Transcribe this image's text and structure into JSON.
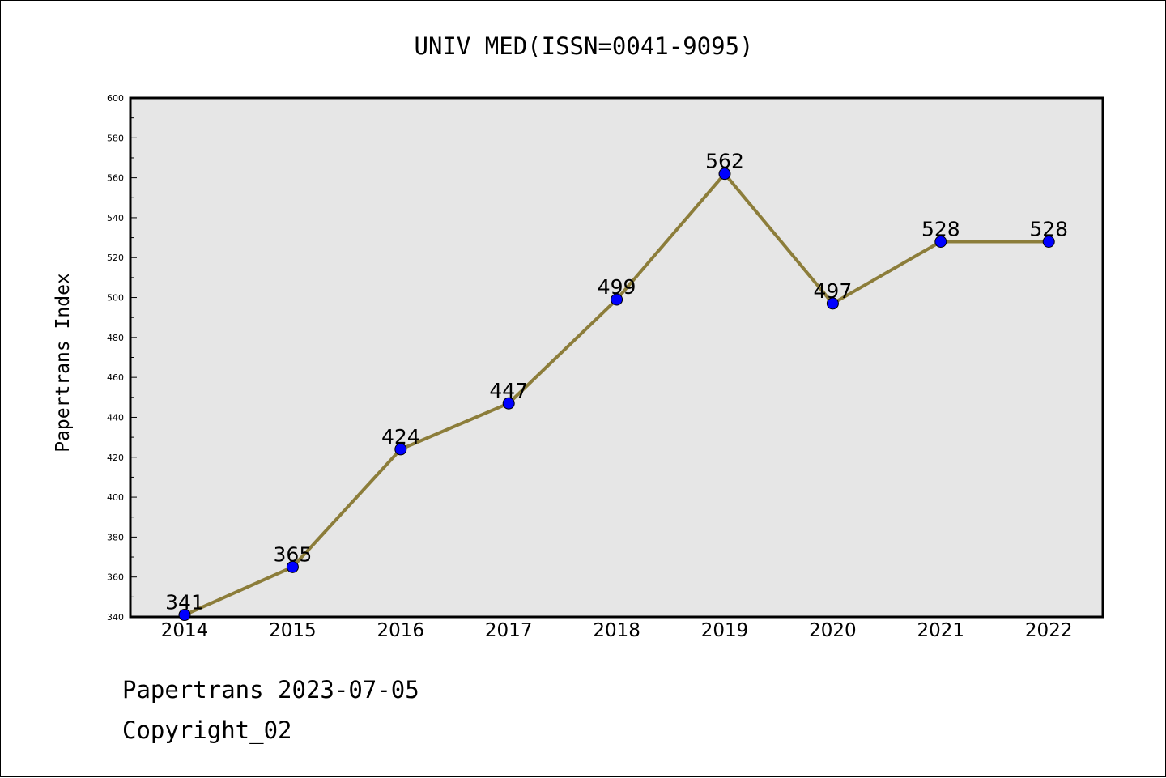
{
  "chart_data": {
    "type": "line",
    "title": "UNIV MED(ISSN=0041-9095)",
    "xlabel": "",
    "ylabel": "Papertrans Index",
    "categories": [
      "2014",
      "2015",
      "2016",
      "2017",
      "2018",
      "2019",
      "2020",
      "2021",
      "2022"
    ],
    "series": [
      {
        "values": [
          341,
          365,
          424,
          447,
          499,
          562,
          497,
          528,
          528
        ]
      }
    ],
    "ylim": [
      340,
      600
    ],
    "yticks": [
      340,
      360,
      380,
      400,
      420,
      440,
      460,
      480,
      500,
      520,
      540,
      560,
      580,
      600
    ],
    "grid": false,
    "legend": "none",
    "colors": {
      "line": "#8c7d3a",
      "marker": "#0000ff",
      "plot_background": "#e6e6e6"
    }
  },
  "footer": {
    "line1": "Papertrans 2023-07-05",
    "line2": "Copyright_02"
  }
}
